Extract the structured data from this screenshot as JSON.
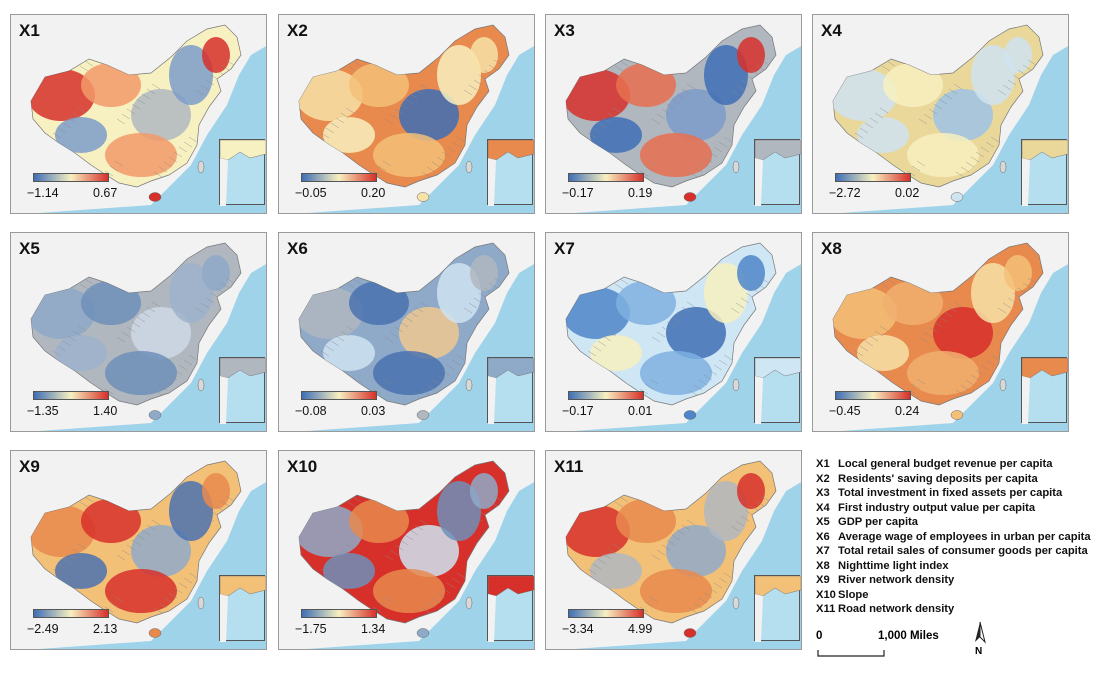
{
  "panels": [
    {
      "label": "X1",
      "min": "−1.14",
      "max": "0.67"
    },
    {
      "label": "X2",
      "min": "−0.05",
      "max": "0.20"
    },
    {
      "label": "X3",
      "min": "−0.17",
      "max": "0.19"
    },
    {
      "label": "X4",
      "min": "−2.72",
      "max": "0.02"
    },
    {
      "label": "X5",
      "min": "−1.35",
      "max": "1.40"
    },
    {
      "label": "X6",
      "min": "−0.08",
      "max": "0.03"
    },
    {
      "label": "X7",
      "min": "−0.17",
      "max": "0.01"
    },
    {
      "label": "X8",
      "min": "−0.45",
      "max": "0.24"
    },
    {
      "label": "X9",
      "min": "−2.49",
      "max": "2.13"
    },
    {
      "label": "X10",
      "min": "−1.75",
      "max": "1.34"
    },
    {
      "label": "X11",
      "min": "−3.34",
      "max": "4.99"
    }
  ],
  "legend": [
    {
      "code": "X1",
      "text": "Local general budget revenue per capita"
    },
    {
      "code": "X2",
      "text": "Residents' saving deposits per capita"
    },
    {
      "code": "X3",
      "text": "Total investment in fixed assets per capita"
    },
    {
      "code": "X4",
      "text": "First industry output value per capita"
    },
    {
      "code": "X5",
      "text": "GDP per capita"
    },
    {
      "code": "X6",
      "text": "Average wage of employees in urban per capita"
    },
    {
      "code": "X7",
      "text": "Total retail sales of consumer goods per capita"
    },
    {
      "code": "X8",
      "text": "Nighttime light index"
    },
    {
      "code": "X9",
      "text": "River network density"
    },
    {
      "code": "X10",
      "text": "Slope"
    },
    {
      "code": "X11",
      "text": "Road network density"
    }
  ],
  "scale_bar": {
    "start": "0",
    "end": "1,000 Miles"
  },
  "north_label": "N",
  "colors": {
    "sea": "#9fd3ea",
    "land_outside": "#f2f2f2",
    "low": "#3f6fb5",
    "mid": "#f7f0c0",
    "high": "#d7302a",
    "neutral": "#b0b7bf"
  }
}
